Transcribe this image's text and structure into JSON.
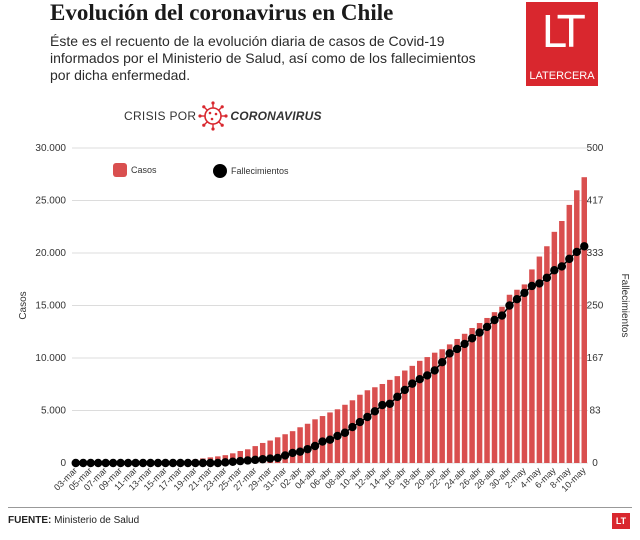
{
  "header": {
    "title": "Evolución del coronavirus en Chile",
    "subtitle": "Éste es el recuento de la evolución diaria de casos de Covid-19 informados por el Ministerio de Salud, así como de los fallecimientos por dicha enfermedad."
  },
  "logo": {
    "letters": "LT",
    "name": "LATERCERA"
  },
  "section_tag": {
    "prefix": "CRISIS POR",
    "suffix": "CORONAVIRUS"
  },
  "footer": {
    "source_label": "FUENTE:",
    "source_text": " Ministerio de Salud",
    "mini_logo": "LT"
  },
  "colors": {
    "brand": "#d9272e",
    "cases": "#d94f4f",
    "deaths": "#000000",
    "grid": "#d0d0d0",
    "text": "#222222"
  },
  "chart_data": {
    "type": "bar",
    "title": "",
    "ylabel": "Casos",
    "y2label": "Fallecimientos",
    "legend": [
      {
        "name": "Casos",
        "marker": "square",
        "color": "#d94f4f"
      },
      {
        "name": "Fallecimientos",
        "marker": "circle",
        "color": "#000000"
      }
    ],
    "legend_position": "top-left",
    "ylim": [
      0,
      30000
    ],
    "y_ticks": [
      "30.000",
      "25.000",
      "20.000",
      "15.000",
      "10.000",
      "5.000",
      "0"
    ],
    "y2lim": [
      0,
      500
    ],
    "y2_ticks": [
      "500",
      "417",
      "333",
      "250",
      "167",
      "83",
      "0"
    ],
    "x_tick_labels": [
      "03-mar",
      "05-mar",
      "07-mar",
      "09-mar",
      "11-mar",
      "13-mar",
      "15-mar",
      "17-mar",
      "19-mar",
      "21-mar",
      "23-mar",
      "25-mar",
      "27-mar",
      "29-mar",
      "31-mar",
      "02-abr",
      "04-abr",
      "06-abr",
      "08-abr",
      "10-abr",
      "12-abr",
      "14-abr",
      "16-abr",
      "18-abr",
      "20-abr",
      "22-abr",
      "24-abr",
      "26-abr",
      "28-abr",
      "30-abr",
      "2-may",
      "4-may",
      "6-may",
      "8-may",
      "10-may"
    ],
    "categories": [
      "03-mar",
      "04-mar",
      "05-mar",
      "06-mar",
      "07-mar",
      "08-mar",
      "09-mar",
      "10-mar",
      "11-mar",
      "12-mar",
      "13-mar",
      "14-mar",
      "15-mar",
      "16-mar",
      "17-mar",
      "18-mar",
      "19-mar",
      "20-mar",
      "21-mar",
      "22-mar",
      "23-mar",
      "24-mar",
      "25-mar",
      "26-mar",
      "27-mar",
      "28-mar",
      "29-mar",
      "30-mar",
      "31-mar",
      "01-abr",
      "02-abr",
      "03-abr",
      "04-abr",
      "05-abr",
      "06-abr",
      "07-abr",
      "08-abr",
      "09-abr",
      "10-abr",
      "11-abr",
      "12-abr",
      "13-abr",
      "14-abr",
      "15-abr",
      "16-abr",
      "17-abr",
      "18-abr",
      "19-abr",
      "20-abr",
      "21-abr",
      "22-abr",
      "23-abr",
      "24-abr",
      "25-abr",
      "26-abr",
      "27-abr",
      "28-abr",
      "29-abr",
      "30-abr",
      "1-may",
      "2-may",
      "3-may",
      "4-may",
      "5-may",
      "6-may",
      "7-may",
      "8-may",
      "9-may",
      "10-may"
    ],
    "series": [
      {
        "name": "Casos",
        "type": "bar",
        "axis": "left",
        "values": [
          1,
          1,
          4,
          5,
          7,
          10,
          13,
          17,
          23,
          33,
          43,
          61,
          75,
          155,
          201,
          238,
          342,
          434,
          537,
          632,
          746,
          922,
          1142,
          1306,
          1610,
          1909,
          2139,
          2449,
          2738,
          3031,
          3404,
          3737,
          4161,
          4471,
          4815,
          5116,
          5546,
          5972,
          6501,
          6927,
          7213,
          7525,
          7917,
          8273,
          8807,
          9252,
          9730,
          10088,
          10507,
          10832,
          11296,
          11812,
          12306,
          12858,
          13331,
          13813,
          14365,
          14885,
          16023,
          16501,
          17008,
          18435,
          19663,
          20643,
          22016,
          23048,
          24581,
          25972,
          27219
        ]
      },
      {
        "name": "Fallecimientos",
        "type": "line",
        "axis": "right",
        "values": [
          0,
          0,
          0,
          0,
          0,
          0,
          0,
          0,
          0,
          0,
          0,
          0,
          0,
          0,
          0,
          0,
          0,
          0,
          0,
          0,
          1,
          2,
          3,
          4,
          5,
          6,
          7,
          8,
          12,
          16,
          18,
          22,
          27,
          34,
          37,
          43,
          48,
          57,
          65,
          73,
          82,
          92,
          94,
          105,
          116,
          126,
          133,
          139,
          147,
          160,
          174,
          181,
          189,
          198,
          207,
          216,
          227,
          234,
          250,
          260,
          270,
          281,
          285,
          294,
          306,
          312,
          324,
          335,
          344
        ]
      }
    ]
  }
}
